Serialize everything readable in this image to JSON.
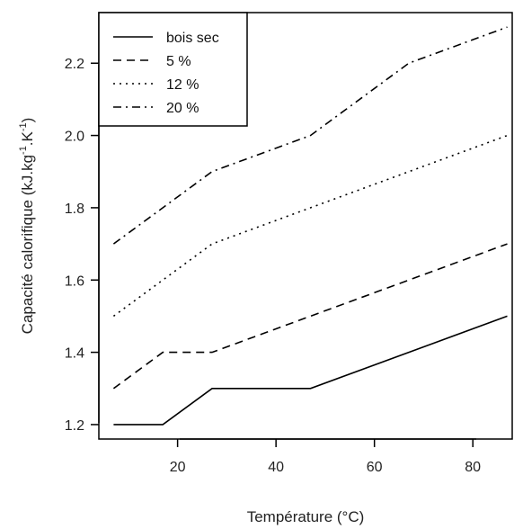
{
  "chart_data": {
    "type": "line",
    "xlabel": "Température (°C)",
    "ylabel": {
      "text": "Capacité calorifique (kJ.kg",
      "sup1": "-1",
      "mid": ".K",
      "sup2": "-1",
      "end": ")"
    },
    "xlim": [
      4,
      88
    ],
    "ylim": [
      1.16,
      2.34
    ],
    "x_ticks": [
      20,
      40,
      60,
      80
    ],
    "y_ticks": [
      1.2,
      1.4,
      1.6,
      1.8,
      2.0,
      2.2
    ],
    "x_tick_labels": [
      "20",
      "40",
      "60",
      "80"
    ],
    "y_tick_labels": [
      "1.2",
      "1.4",
      "1.6",
      "1.8",
      "2.0",
      "2.2"
    ],
    "legend_position": "top-left",
    "grid": false,
    "series": [
      {
        "name": "bois sec",
        "dash": "solid",
        "x": [
          7,
          17,
          27,
          47,
          87
        ],
        "y": [
          1.2,
          1.2,
          1.3,
          1.3,
          1.5
        ]
      },
      {
        "name": "5 %",
        "dash": "dashed",
        "x": [
          7,
          17,
          27,
          87
        ],
        "y": [
          1.3,
          1.4,
          1.4,
          1.7
        ]
      },
      {
        "name": "12 %",
        "dash": "dotted",
        "x": [
          7,
          27,
          87
        ],
        "y": [
          1.5,
          1.7,
          2.0
        ]
      },
      {
        "name": "20 %",
        "dash": "dashdot",
        "x": [
          7,
          27,
          47,
          67,
          87
        ],
        "y": [
          1.7,
          1.9,
          2.0,
          2.2,
          2.3
        ]
      }
    ]
  }
}
